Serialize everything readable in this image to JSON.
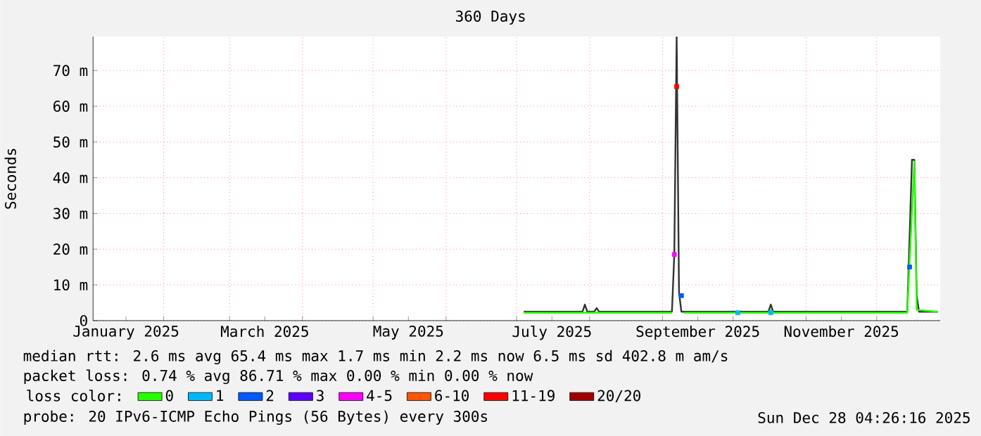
{
  "chart_data": {
    "type": "line",
    "title": "360 Days",
    "ylabel": "Seconds",
    "legend_title": "loss color:",
    "legend": "bottom",
    "grid": true,
    "xlim": [
      "2025-01-02",
      "2025-12-28"
    ],
    "xticks": [
      {
        "value": "2025-02-01",
        "label": null
      },
      {
        "value": "2025-03-01",
        "label": null
      },
      {
        "value": "2025-04-01",
        "label": null
      },
      {
        "value": "2025-05-01",
        "label": null
      },
      {
        "value": "2025-06-01",
        "label": null
      },
      {
        "value": "2025-07-01",
        "label": null
      },
      {
        "value": "2025-08-01",
        "label": null
      },
      {
        "value": "2025-09-01",
        "label": null
      },
      {
        "value": "2025-10-01",
        "label": null
      },
      {
        "value": "2025-11-01",
        "label": null
      },
      {
        "value": "2025-12-01",
        "label": null
      },
      {
        "value": "2025-01-16",
        "label": "January 2025"
      },
      {
        "value": "2025-03-16",
        "label": "March 2025"
      },
      {
        "value": "2025-05-16",
        "label": "May 2025"
      },
      {
        "value": "2025-07-16",
        "label": "July 2025"
      },
      {
        "value": "2025-09-16",
        "label": "September 2025"
      },
      {
        "value": "2025-11-16",
        "label": "November 2025"
      }
    ],
    "ylim": [
      0,
      79.5
    ],
    "yticks": [
      0,
      {
        "value": 10,
        "label": "10 m"
      },
      {
        "value": 20,
        "label": "20 m"
      },
      {
        "value": 30,
        "label": "30 m"
      },
      {
        "value": 40,
        "label": "40 m"
      },
      {
        "value": 50,
        "label": "50 m"
      },
      {
        "value": 60,
        "label": "60 m"
      },
      {
        "value": 70,
        "label": "70 m"
      }
    ],
    "series": [
      {
        "color": "#333333",
        "x": [
          "2025-07-04",
          "2025-07-29",
          "2025-07-30",
          "2025-07-31",
          "2025-08-03",
          "2025-08-04",
          "2025-08-05",
          "2025-09-05",
          "2025-09-06",
          "2025-09-07",
          "2025-09-08",
          "2025-09-09",
          "2025-10-16",
          "2025-10-17",
          "2025-10-18",
          "2025-12-14",
          "2025-12-16",
          "2025-12-17",
          "2025-12-18",
          "2025-12-19",
          "2025-12-27"
        ],
        "values": [
          2.5,
          2.5,
          4.5,
          2.5,
          2.5,
          3.5,
          2.5,
          2.5,
          18.5,
          79.5,
          8,
          2.5,
          2.5,
          4.5,
          2.5,
          2.5,
          45,
          45,
          7,
          2.5,
          2.5
        ]
      },
      {
        "name": "0",
        "color": "#26ff00",
        "x": [
          "2025-07-04",
          "2025-09-05",
          "2025-09-06",
          "2025-09-10",
          "2025-10-16",
          "2025-10-17",
          "2025-10-18",
          "2025-12-14",
          "2025-12-17",
          "2025-12-18",
          "2025-12-27"
        ],
        "values": [
          2.2,
          2.2,
          null,
          2.2,
          2.2,
          3,
          2.2,
          2.2,
          44.5,
          3,
          2.5
        ]
      },
      {
        "name": "1",
        "color": "#00b8ff",
        "type": "scatter",
        "x": [
          "2025-10-03",
          "2025-10-17"
        ],
        "values": [
          2.2,
          2.2
        ]
      },
      {
        "name": "2",
        "color": "#0059ff",
        "type": "scatter",
        "x": [
          "2025-09-09",
          "2025-12-15"
        ],
        "values": [
          7,
          15
        ]
      },
      {
        "name": "3",
        "color": "#5e00ff"
      },
      {
        "name": "4-5",
        "color": "#ff00ff",
        "type": "scatter",
        "x": [
          "2025-09-06"
        ],
        "values": [
          18.5
        ]
      },
      {
        "name": "6-10",
        "color": "#ff5500"
      },
      {
        "name": "11-19",
        "color": "#ff0000",
        "type": "scatter",
        "x": [
          "2025-09-07"
        ],
        "values": [
          65.5
        ]
      },
      {
        "name": "20/20",
        "color": "#a10000"
      }
    ],
    "annotations": [
      "median rtt:  2.6 ms avg  65.4 ms max  1.7 ms min  2.2 ms now  6.5 ms sd  402.8 m am/s",
      "packet loss: 0.74 % avg  86.71 % max  0.00 % min  0.00 % now",
      "probe:  20 IPv6-ICMP Echo Pings (56 Bytes) every 300s",
      "Sun Dec 28 04:26:16 2025"
    ]
  }
}
